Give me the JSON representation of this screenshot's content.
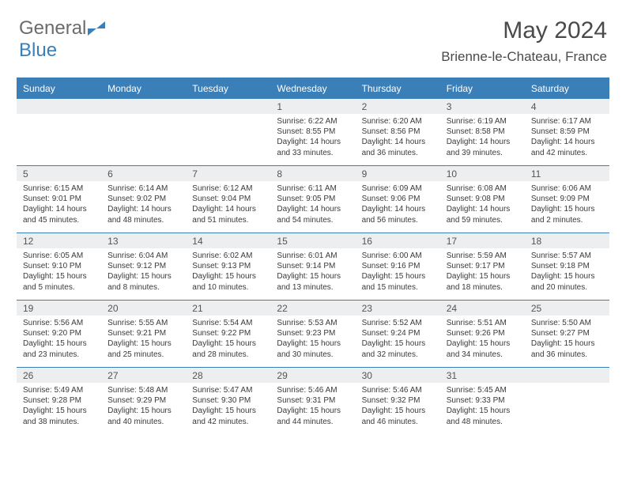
{
  "logo": {
    "text1": "General",
    "text2": "Blue"
  },
  "title": "May 2024",
  "location": "Brienne-le-Chateau, France",
  "colors": {
    "accent": "#3a7fb8",
    "header_bg": "#3a7fb8",
    "header_text": "#ffffff",
    "daynum_bg": "#eceeef",
    "text": "#3a3a3a",
    "page_bg": "#ffffff"
  },
  "dayHeaders": [
    "Sunday",
    "Monday",
    "Tuesday",
    "Wednesday",
    "Thursday",
    "Friday",
    "Saturday"
  ],
  "weeks": [
    [
      {
        "num": "",
        "sunrise": "",
        "sunset": "",
        "daylight": ""
      },
      {
        "num": "",
        "sunrise": "",
        "sunset": "",
        "daylight": ""
      },
      {
        "num": "",
        "sunrise": "",
        "sunset": "",
        "daylight": ""
      },
      {
        "num": "1",
        "sunrise": "Sunrise: 6:22 AM",
        "sunset": "Sunset: 8:55 PM",
        "daylight": "Daylight: 14 hours and 33 minutes."
      },
      {
        "num": "2",
        "sunrise": "Sunrise: 6:20 AM",
        "sunset": "Sunset: 8:56 PM",
        "daylight": "Daylight: 14 hours and 36 minutes."
      },
      {
        "num": "3",
        "sunrise": "Sunrise: 6:19 AM",
        "sunset": "Sunset: 8:58 PM",
        "daylight": "Daylight: 14 hours and 39 minutes."
      },
      {
        "num": "4",
        "sunrise": "Sunrise: 6:17 AM",
        "sunset": "Sunset: 8:59 PM",
        "daylight": "Daylight: 14 hours and 42 minutes."
      }
    ],
    [
      {
        "num": "5",
        "sunrise": "Sunrise: 6:15 AM",
        "sunset": "Sunset: 9:01 PM",
        "daylight": "Daylight: 14 hours and 45 minutes."
      },
      {
        "num": "6",
        "sunrise": "Sunrise: 6:14 AM",
        "sunset": "Sunset: 9:02 PM",
        "daylight": "Daylight: 14 hours and 48 minutes."
      },
      {
        "num": "7",
        "sunrise": "Sunrise: 6:12 AM",
        "sunset": "Sunset: 9:04 PM",
        "daylight": "Daylight: 14 hours and 51 minutes."
      },
      {
        "num": "8",
        "sunrise": "Sunrise: 6:11 AM",
        "sunset": "Sunset: 9:05 PM",
        "daylight": "Daylight: 14 hours and 54 minutes."
      },
      {
        "num": "9",
        "sunrise": "Sunrise: 6:09 AM",
        "sunset": "Sunset: 9:06 PM",
        "daylight": "Daylight: 14 hours and 56 minutes."
      },
      {
        "num": "10",
        "sunrise": "Sunrise: 6:08 AM",
        "sunset": "Sunset: 9:08 PM",
        "daylight": "Daylight: 14 hours and 59 minutes."
      },
      {
        "num": "11",
        "sunrise": "Sunrise: 6:06 AM",
        "sunset": "Sunset: 9:09 PM",
        "daylight": "Daylight: 15 hours and 2 minutes."
      }
    ],
    [
      {
        "num": "12",
        "sunrise": "Sunrise: 6:05 AM",
        "sunset": "Sunset: 9:10 PM",
        "daylight": "Daylight: 15 hours and 5 minutes."
      },
      {
        "num": "13",
        "sunrise": "Sunrise: 6:04 AM",
        "sunset": "Sunset: 9:12 PM",
        "daylight": "Daylight: 15 hours and 8 minutes."
      },
      {
        "num": "14",
        "sunrise": "Sunrise: 6:02 AM",
        "sunset": "Sunset: 9:13 PM",
        "daylight": "Daylight: 15 hours and 10 minutes."
      },
      {
        "num": "15",
        "sunrise": "Sunrise: 6:01 AM",
        "sunset": "Sunset: 9:14 PM",
        "daylight": "Daylight: 15 hours and 13 minutes."
      },
      {
        "num": "16",
        "sunrise": "Sunrise: 6:00 AM",
        "sunset": "Sunset: 9:16 PM",
        "daylight": "Daylight: 15 hours and 15 minutes."
      },
      {
        "num": "17",
        "sunrise": "Sunrise: 5:59 AM",
        "sunset": "Sunset: 9:17 PM",
        "daylight": "Daylight: 15 hours and 18 minutes."
      },
      {
        "num": "18",
        "sunrise": "Sunrise: 5:57 AM",
        "sunset": "Sunset: 9:18 PM",
        "daylight": "Daylight: 15 hours and 20 minutes."
      }
    ],
    [
      {
        "num": "19",
        "sunrise": "Sunrise: 5:56 AM",
        "sunset": "Sunset: 9:20 PM",
        "daylight": "Daylight: 15 hours and 23 minutes."
      },
      {
        "num": "20",
        "sunrise": "Sunrise: 5:55 AM",
        "sunset": "Sunset: 9:21 PM",
        "daylight": "Daylight: 15 hours and 25 minutes."
      },
      {
        "num": "21",
        "sunrise": "Sunrise: 5:54 AM",
        "sunset": "Sunset: 9:22 PM",
        "daylight": "Daylight: 15 hours and 28 minutes."
      },
      {
        "num": "22",
        "sunrise": "Sunrise: 5:53 AM",
        "sunset": "Sunset: 9:23 PM",
        "daylight": "Daylight: 15 hours and 30 minutes."
      },
      {
        "num": "23",
        "sunrise": "Sunrise: 5:52 AM",
        "sunset": "Sunset: 9:24 PM",
        "daylight": "Daylight: 15 hours and 32 minutes."
      },
      {
        "num": "24",
        "sunrise": "Sunrise: 5:51 AM",
        "sunset": "Sunset: 9:26 PM",
        "daylight": "Daylight: 15 hours and 34 minutes."
      },
      {
        "num": "25",
        "sunrise": "Sunrise: 5:50 AM",
        "sunset": "Sunset: 9:27 PM",
        "daylight": "Daylight: 15 hours and 36 minutes."
      }
    ],
    [
      {
        "num": "26",
        "sunrise": "Sunrise: 5:49 AM",
        "sunset": "Sunset: 9:28 PM",
        "daylight": "Daylight: 15 hours and 38 minutes."
      },
      {
        "num": "27",
        "sunrise": "Sunrise: 5:48 AM",
        "sunset": "Sunset: 9:29 PM",
        "daylight": "Daylight: 15 hours and 40 minutes."
      },
      {
        "num": "28",
        "sunrise": "Sunrise: 5:47 AM",
        "sunset": "Sunset: 9:30 PM",
        "daylight": "Daylight: 15 hours and 42 minutes."
      },
      {
        "num": "29",
        "sunrise": "Sunrise: 5:46 AM",
        "sunset": "Sunset: 9:31 PM",
        "daylight": "Daylight: 15 hours and 44 minutes."
      },
      {
        "num": "30",
        "sunrise": "Sunrise: 5:46 AM",
        "sunset": "Sunset: 9:32 PM",
        "daylight": "Daylight: 15 hours and 46 minutes."
      },
      {
        "num": "31",
        "sunrise": "Sunrise: 5:45 AM",
        "sunset": "Sunset: 9:33 PM",
        "daylight": "Daylight: 15 hours and 48 minutes."
      },
      {
        "num": "",
        "sunrise": "",
        "sunset": "",
        "daylight": ""
      }
    ]
  ]
}
